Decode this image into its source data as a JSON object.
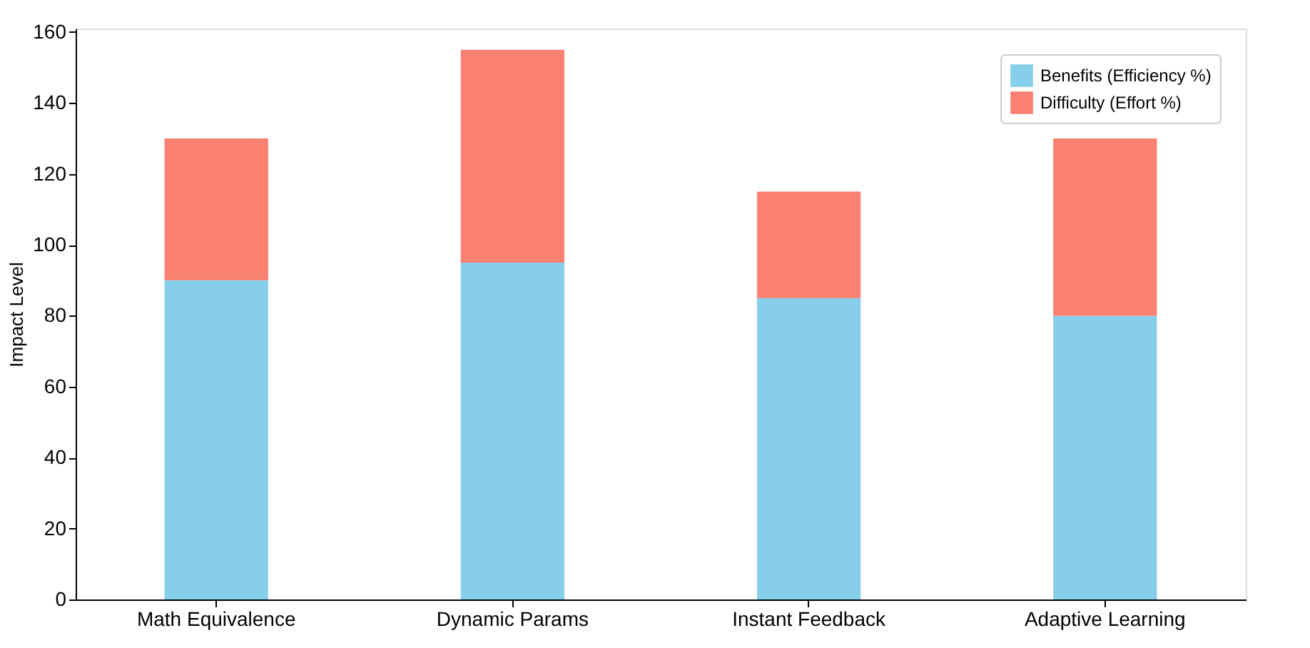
{
  "chart_data": {
    "type": "bar",
    "stacked": true,
    "ylabel": "Impact Level",
    "categories": [
      "Math Equivalence",
      "Dynamic Params",
      "Instant Feedback",
      "Adaptive Learning"
    ],
    "series": [
      {
        "name": "Benefits (Efficiency %)",
        "color": "#87ceeb",
        "values": [
          90,
          95,
          85,
          80
        ]
      },
      {
        "name": "Difficulty (Effort %)",
        "color": "#fa8072",
        "values": [
          40,
          60,
          30,
          50
        ]
      }
    ],
    "ylim": [
      0,
      161
    ],
    "yticks": [
      0,
      20,
      40,
      60,
      80,
      100,
      120,
      140,
      160
    ],
    "grid": false,
    "legend": "top right"
  }
}
